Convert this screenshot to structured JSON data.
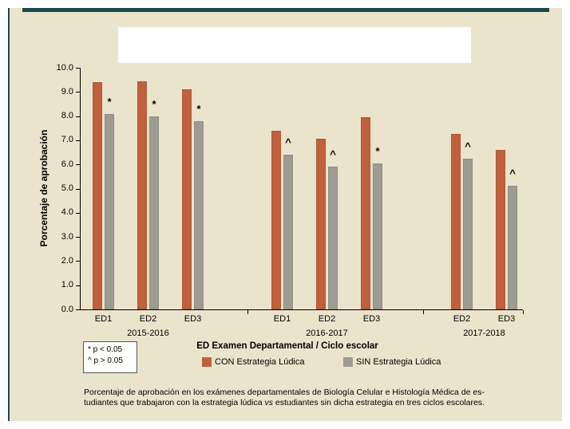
{
  "chart_data": {
    "type": "bar",
    "title": "",
    "ylabel": "Porcentaje de aprobación",
    "xlabel": "ED Examen Departamental / Ciclo escolar",
    "ylim": [
      0,
      10
    ],
    "grid": false,
    "legend_position": "bottom",
    "ytick_labels": [
      "10.0",
      "9.0",
      "8.0",
      "7.0",
      "6.0",
      "5.0",
      "4.0",
      "3.0",
      "2.0",
      "1.0",
      "0.0"
    ],
    "series": [
      {
        "name": "CON Estrategia Lúdica",
        "color": "#c0603c"
      },
      {
        "name": "SIN Estrategia Lúdica",
        "color": "#9c9c92"
      }
    ],
    "groups": [
      {
        "cycle": "2015-2016",
        "exams": [
          {
            "label": "ED1",
            "con": 9.4,
            "sin": 8.1,
            "marker": "*"
          },
          {
            "label": "ED2",
            "con": 9.45,
            "sin": 8.0,
            "marker": "*"
          },
          {
            "label": "ED3",
            "con": 9.1,
            "sin": 7.8,
            "marker": "*"
          }
        ]
      },
      {
        "cycle": "2016-2017",
        "exams": [
          {
            "label": "ED1",
            "con": 7.4,
            "sin": 6.4,
            "marker": "^"
          },
          {
            "label": "ED2",
            "con": 7.05,
            "sin": 5.9,
            "marker": "^"
          },
          {
            "label": "ED3",
            "con": 7.95,
            "sin": 6.05,
            "marker": "*"
          }
        ]
      },
      {
        "cycle": "2017-2018",
        "exams": [
          {
            "label": "ED2",
            "con": 7.25,
            "sin": 6.25,
            "marker": "^"
          },
          {
            "label": "ED3",
            "con": 6.6,
            "sin": 5.1,
            "marker": "^"
          }
        ]
      }
    ]
  },
  "significance_note": {
    "line1": "* p < 0.05",
    "line2": "^ p > 0.05"
  },
  "caption": {
    "line1": "Porcentaje de aprobación en los exámenes departamentales de Biología Celular e Histología Médica de es-",
    "line2_pre": "tudiantes que trabajaron con la estrategia lúdica ",
    "line2_italic": "vs",
    "line2_post": " estudiantes sin dicha estrategia en tres ciclos escolares."
  },
  "colors": {
    "background": "#ebe4cc",
    "accent": "#1c474c",
    "bar_con": "#c0603c",
    "bar_sin": "#9c9c92"
  }
}
